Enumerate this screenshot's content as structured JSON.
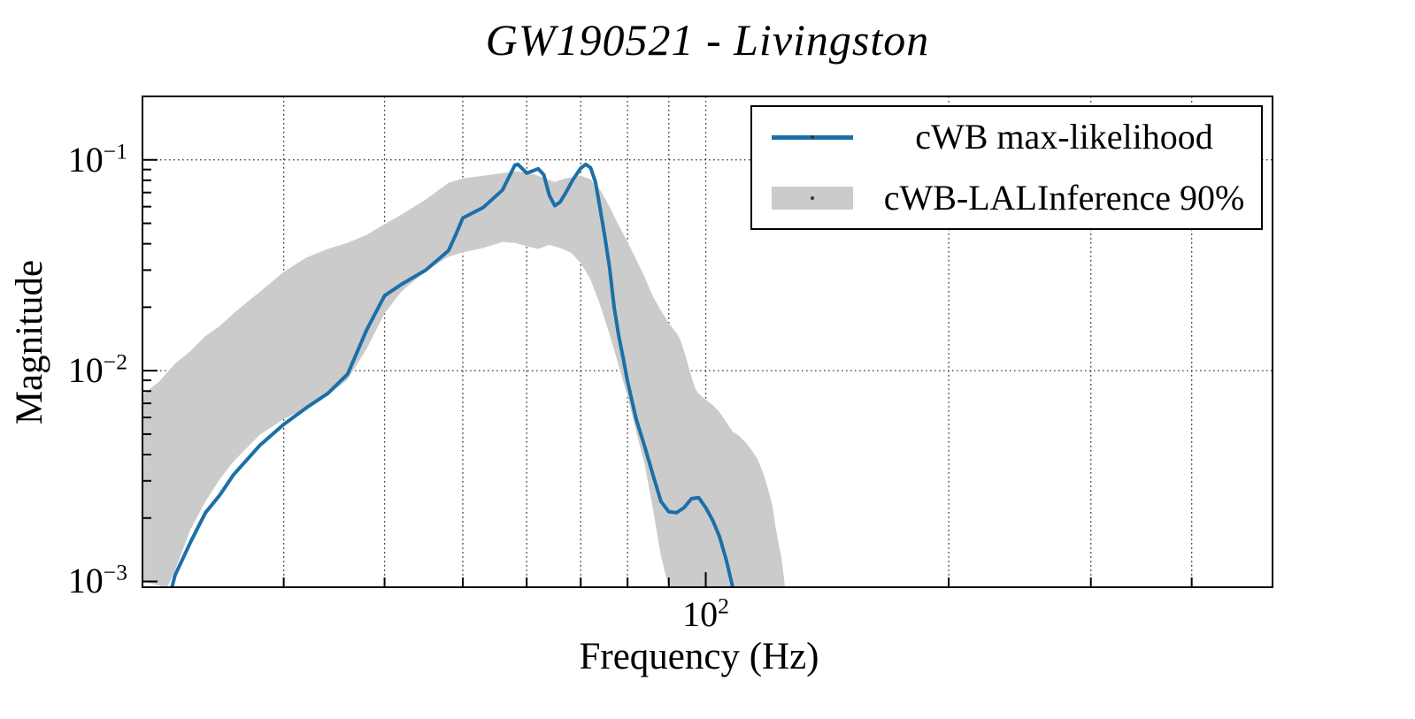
{
  "chart_data": {
    "type": "line",
    "title": "GW190521 - Livingston",
    "xlabel": "Frequency (Hz)",
    "ylabel": "Magnitude",
    "xscale": "log",
    "yscale": "log",
    "xlim": [
      20,
      505
    ],
    "ylim": [
      0.00093,
      0.202
    ],
    "grid": {
      "show": true,
      "style": "dotted",
      "color": "#333333",
      "horizontal_at": [
        0.1,
        0.01
      ]
    },
    "x_ticks": {
      "major": [
        100
      ],
      "minor": [
        30,
        40,
        50,
        60,
        70,
        80,
        90,
        200,
        300,
        400
      ],
      "labels": [
        {
          "value": 100,
          "base": "10",
          "exp": "2"
        }
      ]
    },
    "y_ticks": {
      "major": [
        0.1,
        0.01,
        0.001
      ],
      "labels": [
        {
          "value": 0.1,
          "base": "10",
          "exp": "−1"
        },
        {
          "value": 0.01,
          "base": "10",
          "exp": "−2"
        },
        {
          "value": 0.001,
          "base": "10",
          "exp": "−3"
        }
      ]
    },
    "legend": {
      "position": "upper right"
    },
    "series": [
      {
        "name": "cWB max-likelihood",
        "type": "line",
        "color": "#1c6fa8",
        "linewidth": 4,
        "points": [
          [
            21.8,
            0.00093
          ],
          [
            22,
            0.00107
          ],
          [
            23,
            0.00154
          ],
          [
            24,
            0.00212
          ],
          [
            25,
            0.00257
          ],
          [
            26,
            0.00321
          ],
          [
            28,
            0.00441
          ],
          [
            30,
            0.00556
          ],
          [
            32,
            0.00667
          ],
          [
            34,
            0.00778
          ],
          [
            36,
            0.00962
          ],
          [
            38,
            0.0156
          ],
          [
            40,
            0.0227
          ],
          [
            42,
            0.0257
          ],
          [
            45,
            0.03
          ],
          [
            48,
            0.0371
          ],
          [
            49,
            0.0441
          ],
          [
            50,
            0.053
          ],
          [
            53,
            0.0594
          ],
          [
            56,
            0.072
          ],
          [
            58,
            0.0944
          ],
          [
            58.5,
            0.0953
          ],
          [
            59.5,
            0.0894
          ],
          [
            60,
            0.0865
          ],
          [
            61,
            0.0885
          ],
          [
            62,
            0.0908
          ],
          [
            63,
            0.0849
          ],
          [
            64,
            0.068
          ],
          [
            65,
            0.0606
          ],
          [
            66,
            0.063
          ],
          [
            67,
            0.0693
          ],
          [
            68.5,
            0.0809
          ],
          [
            70,
            0.0912
          ],
          [
            71,
            0.0953
          ],
          [
            72,
            0.0917
          ],
          [
            73,
            0.0785
          ],
          [
            74,
            0.0583
          ],
          [
            75,
            0.0429
          ],
          [
            76,
            0.0309
          ],
          [
            77,
            0.02
          ],
          [
            78,
            0.0147
          ],
          [
            79,
            0.0115
          ],
          [
            80,
            0.00891
          ],
          [
            82,
            0.00589
          ],
          [
            84,
            0.00437
          ],
          [
            86,
            0.00321
          ],
          [
            88,
            0.0024
          ],
          [
            90,
            0.00214
          ],
          [
            92,
            0.00212
          ],
          [
            94,
            0.00224
          ],
          [
            96,
            0.00247
          ],
          [
            98,
            0.0025
          ],
          [
            100,
            0.00224
          ],
          [
            102,
            0.00195
          ],
          [
            104,
            0.00163
          ],
          [
            106,
            0.00127
          ],
          [
            108,
            0.00094
          ]
        ]
      },
      {
        "name": "cWB-LALInference 90%",
        "type": "band",
        "color": "#cbcbcb",
        "upper": [
          [
            20,
            0.00764
          ],
          [
            21,
            0.00883
          ],
          [
            22,
            0.0108
          ],
          [
            23,
            0.0124
          ],
          [
            24,
            0.0146
          ],
          [
            25,
            0.0163
          ],
          [
            26,
            0.0187
          ],
          [
            28,
            0.0236
          ],
          [
            30,
            0.0294
          ],
          [
            32,
            0.0344
          ],
          [
            34,
            0.0378
          ],
          [
            36,
            0.0404
          ],
          [
            38,
            0.0441
          ],
          [
            40,
            0.0495
          ],
          [
            42,
            0.0551
          ],
          [
            45,
            0.0649
          ],
          [
            48,
            0.0778
          ],
          [
            50,
            0.0817
          ],
          [
            53,
            0.0841
          ],
          [
            56,
            0.0865
          ],
          [
            58,
            0.0883
          ],
          [
            60,
            0.0874
          ],
          [
            62,
            0.0841
          ],
          [
            64,
            0.0802
          ],
          [
            65,
            0.0785
          ],
          [
            67,
            0.0817
          ],
          [
            70,
            0.0841
          ],
          [
            72,
            0.0809
          ],
          [
            74,
            0.072
          ],
          [
            76,
            0.06
          ],
          [
            78,
            0.049
          ],
          [
            80,
            0.0408
          ],
          [
            82,
            0.0337
          ],
          [
            84,
            0.0278
          ],
          [
            86,
            0.0225
          ],
          [
            88,
            0.0193
          ],
          [
            90,
            0.0168
          ],
          [
            92,
            0.0151
          ],
          [
            93,
            0.014
          ],
          [
            94,
            0.0124
          ],
          [
            95,
            0.0108
          ],
          [
            96,
            0.00935
          ],
          [
            97,
            0.00824
          ],
          [
            98,
            0.00778
          ],
          [
            100,
            0.00728
          ],
          [
            102,
            0.00687
          ],
          [
            104,
            0.00636
          ],
          [
            106,
            0.00571
          ],
          [
            108,
            0.00514
          ],
          [
            110,
            0.0049
          ],
          [
            112,
            0.00458
          ],
          [
            114,
            0.0042
          ],
          [
            116,
            0.00378
          ],
          [
            118,
            0.00321
          ],
          [
            120,
            0.00257
          ],
          [
            121,
            0.00227
          ],
          [
            122,
            0.00182
          ],
          [
            123,
            0.00154
          ],
          [
            124,
            0.00132
          ],
          [
            125,
            0.00104
          ],
          [
            125.4,
            0.00093
          ]
        ],
        "lower": [
          [
            20,
            0.001
          ],
          [
            21,
            0.00096
          ],
          [
            21.5,
            0.00093
          ],
          [
            22,
            0.00113
          ],
          [
            23,
            0.00177
          ],
          [
            24,
            0.0024
          ],
          [
            25,
            0.00306
          ],
          [
            26,
            0.00371
          ],
          [
            28,
            0.00495
          ],
          [
            30,
            0.00589
          ],
          [
            32,
            0.00667
          ],
          [
            34,
            0.00764
          ],
          [
            36,
            0.00908
          ],
          [
            38,
            0.0127
          ],
          [
            40,
            0.0187
          ],
          [
            42,
            0.0238
          ],
          [
            45,
            0.0297
          ],
          [
            48,
            0.0347
          ],
          [
            50,
            0.0364
          ],
          [
            53,
            0.0382
          ],
          [
            56,
            0.0408
          ],
          [
            58,
            0.0404
          ],
          [
            60,
            0.0389
          ],
          [
            62,
            0.0378
          ],
          [
            64,
            0.0396
          ],
          [
            66,
            0.0382
          ],
          [
            68,
            0.0364
          ],
          [
            70,
            0.0324
          ],
          [
            72,
            0.027
          ],
          [
            74,
            0.0204
          ],
          [
            76,
            0.0149
          ],
          [
            78,
            0.0106
          ],
          [
            80,
            0.00757
          ],
          [
            82,
            0.00514
          ],
          [
            84,
            0.0036
          ],
          [
            86,
            0.00222
          ],
          [
            88,
            0.00132
          ],
          [
            89,
            0.00111
          ],
          [
            90,
            0.00093
          ]
        ]
      }
    ]
  }
}
